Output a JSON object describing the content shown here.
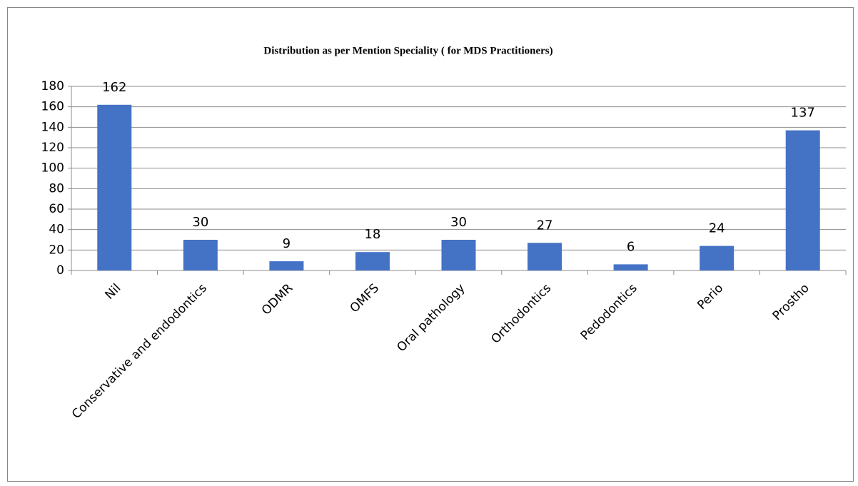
{
  "chart_data": {
    "type": "bar",
    "title": "Distribution as per Mention Speciality ( for MDS Practitioners)",
    "categories": [
      "Nil",
      "Conservative and endodontics",
      "ODMR",
      "OMFS",
      "Oral pathology",
      "Orthodontics",
      "Pedodontics",
      "Perio",
      "Prostho"
    ],
    "values": [
      162,
      30,
      9,
      18,
      30,
      27,
      6,
      24,
      137
    ],
    "color": "#4472c4",
    "ylim": [
      0,
      180
    ],
    "yticks": [
      0,
      20,
      40,
      60,
      80,
      100,
      120,
      140,
      160,
      180
    ],
    "grid": true
  }
}
